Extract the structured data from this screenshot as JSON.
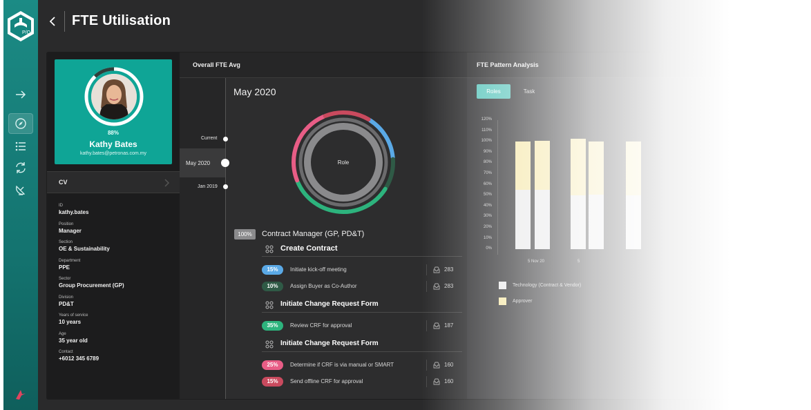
{
  "app": {
    "title": "FTE Utilisation",
    "logo_text": "P/O",
    "rail_icons": [
      "arrow-right-icon",
      "compass-icon",
      "list-icon",
      "refresh-icon",
      "satellite-dish-icon"
    ],
    "accent": "#0fa596"
  },
  "profile": {
    "utilisation": "88%",
    "utilisation_value": 0.88,
    "name": "Kathy Bates",
    "email": "kathy.bates@petronas.com.my",
    "cv_label": "CV",
    "fields": [
      {
        "key": "ID",
        "value": "kathy.bates"
      },
      {
        "key": "Position",
        "value": "Manager"
      },
      {
        "key": "Section",
        "value": "OE & Sustainability"
      },
      {
        "key": "Department",
        "value": "PPE"
      },
      {
        "key": "Sector",
        "value": "Group Procurement (GP)"
      },
      {
        "key": "Division",
        "value": "PD&T"
      },
      {
        "key": "Years of service",
        "value": "10 years"
      },
      {
        "key": "Age",
        "value": "35 year old"
      },
      {
        "key": "Contact",
        "value": "+6012 345 6789"
      }
    ]
  },
  "overall": {
    "header": "Overall FTE Avg",
    "timeline": [
      "Current",
      "May 2020",
      "Jan 2019"
    ],
    "month": "May 2020",
    "donut_label": "Role",
    "donut_segments": [
      {
        "color": "#5aa9e6",
        "value": 0.15
      },
      {
        "color": "#2f5a46",
        "value": 0.1
      },
      {
        "color": "#2db37d",
        "value": 0.35
      },
      {
        "color": "#e85d86",
        "value": 0.25
      },
      {
        "color": "#c94a5e",
        "value": 0.15
      }
    ],
    "role": {
      "badge": "100%",
      "title": "Contract Manager (GP, PD&T)"
    },
    "groups": [
      {
        "title": "Create Contract",
        "tasks": [
          {
            "pct": "15%",
            "label": "Initiate kick-off meeting",
            "count": "283",
            "bg": "#5aa9e6",
            "fg": "#ffffff"
          },
          {
            "pct": "10%",
            "label": "Assign Buyer as Co-Author",
            "count": "283",
            "bg": "#2f5a46",
            "fg": "#ffffff"
          }
        ]
      },
      {
        "title": "Initiate Change Request Form",
        "tasks": [
          {
            "pct": "35%",
            "label": "Review CRF for approval",
            "count": "187",
            "bg": "#2db37d",
            "fg": "#ffffff"
          }
        ]
      },
      {
        "title": "Initiate Change Request Form",
        "tasks": [
          {
            "pct": "25%",
            "label": "Determine if CRF is via manual or SMART",
            "count": "160",
            "bg": "#e85d86",
            "fg": "#ffffff"
          },
          {
            "pct": "15%",
            "label": "Send offline CRF for approval",
            "count": "160",
            "bg": "#c94a5e",
            "fg": "#ffffff"
          }
        ]
      }
    ]
  },
  "pattern": {
    "header": "FTE Pattern Analysis",
    "tabs": [
      "Roles",
      "Task"
    ],
    "y_ticks": [
      "120%",
      "110%",
      "100%",
      "90%",
      "80%",
      "70%",
      "60%",
      "50%",
      "40%",
      "30%",
      "20%",
      "10%",
      "0%"
    ],
    "x_labels": [
      "5 Nov 20",
      "5"
    ],
    "legend": [
      "Technology (Contract & Vendor)",
      "Approver"
    ],
    "legend_colors": [
      "#e9e9ea",
      "#f5e7a7"
    ],
    "bars": [
      {
        "bottom": 0.55,
        "top": 0.45
      },
      {
        "bottom": 0.55,
        "top": 0.46
      },
      {
        "bottom": 0.5,
        "top": 0.53
      },
      {
        "bottom": 0.51,
        "top": 0.49
      },
      {
        "bottom": 0.5,
        "top": 0.5
      }
    ]
  }
}
